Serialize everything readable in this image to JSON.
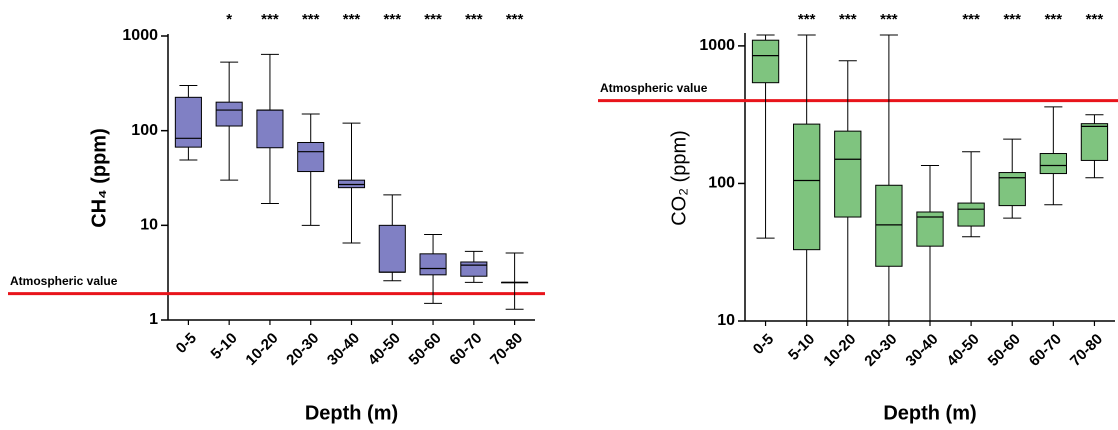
{
  "chart_data": [
    {
      "type": "box",
      "y_label": "CH₄ (ppm)",
      "x_label": "Depth (m)",
      "log_y": true,
      "color": "#8080c4",
      "categories": [
        "0-5",
        "5-10",
        "10-20",
        "20-30",
        "30-40",
        "40-50",
        "50-60",
        "60-70",
        "70-80"
      ],
      "min": [
        49,
        30,
        17,
        10,
        6.5,
        2.6,
        1.5,
        2.5,
        1.3
      ],
      "q1": [
        67,
        112,
        66,
        37,
        25,
        3.2,
        3,
        2.9,
        2.5
      ],
      "median": [
        83,
        165,
        165,
        60,
        27,
        3.2,
        3.5,
        3.8,
        2.5
      ],
      "q3": [
        225,
        200,
        165,
        75,
        30,
        10,
        5,
        4.1,
        2.5
      ],
      "max": [
        300,
        530,
        640,
        150,
        120,
        21,
        8,
        5.3,
        5.1
      ],
      "significance": [
        null,
        "*",
        "***",
        "***",
        "***",
        "***",
        "***",
        "***",
        "***"
      ],
      "reference_line": {
        "label": "Atmospheric value",
        "value": 1.9,
        "color": "#e8141b"
      },
      "ylim": [
        1,
        1000
      ],
      "yticks": [
        1,
        10,
        100,
        1000
      ]
    },
    {
      "type": "box",
      "y_label": "CO₂ (ppm)",
      "x_label": "Depth (m)",
      "log_y": true,
      "color": "#7fc47f",
      "categories": [
        "0-5",
        "5-10",
        "10-20",
        "20-30",
        "30-40",
        "40-50",
        "50-60",
        "60-70",
        "70-80"
      ],
      "min": [
        40,
        10,
        10,
        10,
        10,
        41,
        56,
        70,
        110
      ],
      "q1": [
        540,
        33,
        57,
        25,
        35,
        49,
        69,
        118,
        147
      ],
      "median": [
        850,
        105,
        150,
        50,
        57,
        65,
        110,
        135,
        260
      ],
      "q3": [
        1100,
        270,
        240,
        97,
        62,
        72,
        120,
        165,
        272
      ],
      "max": [
        1200,
        1200,
        780,
        1200,
        135,
        170,
        210,
        360,
        316
      ],
      "significance": [
        null,
        "***",
        "***",
        "***",
        null,
        "***",
        "***",
        "***",
        "***"
      ],
      "reference_line": {
        "label": "Atmospheric value",
        "value": 400,
        "color": "#e8141b"
      },
      "ylim": [
        10,
        1200
      ],
      "yticks": [
        10,
        100,
        1000
      ]
    }
  ]
}
